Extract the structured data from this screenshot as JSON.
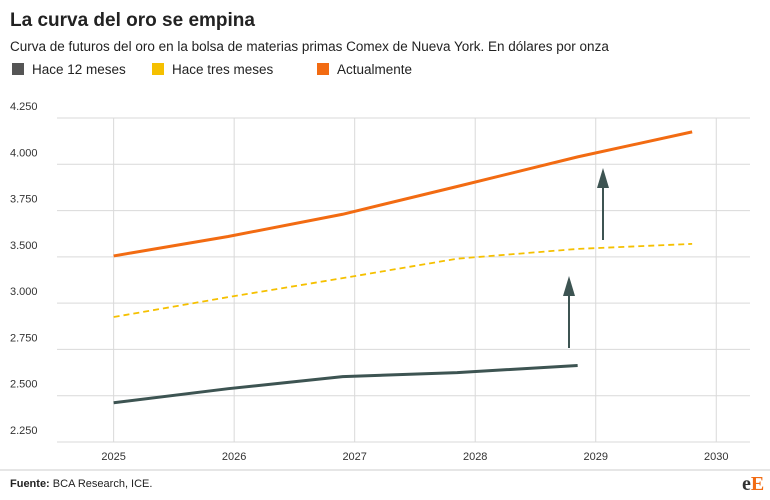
{
  "chart_data": {
    "type": "line",
    "title": "La curva del oro se empina",
    "subtitle": "Curva de futuros del oro en la bolsa de materias primas Comex de Nueva York. En dólares por onza",
    "source_label": "Fuente:",
    "source": "BCA Research, ICE.",
    "logo": [
      "e",
      "E"
    ],
    "xlim": [
      2024.53,
      2030.28
    ],
    "xticks": [
      2025,
      2026,
      2027,
      2028,
      2029,
      2030
    ],
    "ylim": [
      2250,
      4250
    ],
    "yticks": [
      {
        "value": 2250,
        "label": "2.250"
      },
      {
        "value": 2500,
        "label": "2.500"
      },
      {
        "value": 2750,
        "label": "2.750"
      },
      {
        "value": 3000,
        "label": "3.000"
      },
      {
        "value": 3500,
        "label": "3.500"
      },
      {
        "value": 3750,
        "label": "3.750"
      },
      {
        "value": 4000,
        "label": "4.000"
      },
      {
        "value": 4250,
        "label": "4.250"
      }
    ],
    "grid": true,
    "series": [
      {
        "name": "Hace 12 meses",
        "color": "#3d5452",
        "legend_color": "#555555",
        "dash": false,
        "x": [
          2025,
          2025.95,
          2026.9,
          2027.85,
          2028.85
        ],
        "values": [
          2462,
          2538,
          2603,
          2625,
          2663
        ]
      },
      {
        "name": "Hace tres meses",
        "color": "#f5c000",
        "legend_color": "#f5c000",
        "dash": true,
        "x": [
          2025,
          2025.95,
          2026.9,
          2027.85,
          2028.85,
          2029.8
        ],
        "values": [
          2925,
          3065,
          3270,
          3480,
          3543,
          3570
        ]
      },
      {
        "name": "Actualmente",
        "color": "#f26b12",
        "legend_color": "#f26b12",
        "dash": false,
        "x": [
          2025,
          2025.95,
          2026.9,
          2027.85,
          2028.85,
          2029.8
        ],
        "values": [
          3505,
          3610,
          3730,
          3880,
          4040,
          4175
        ]
      }
    ]
  }
}
